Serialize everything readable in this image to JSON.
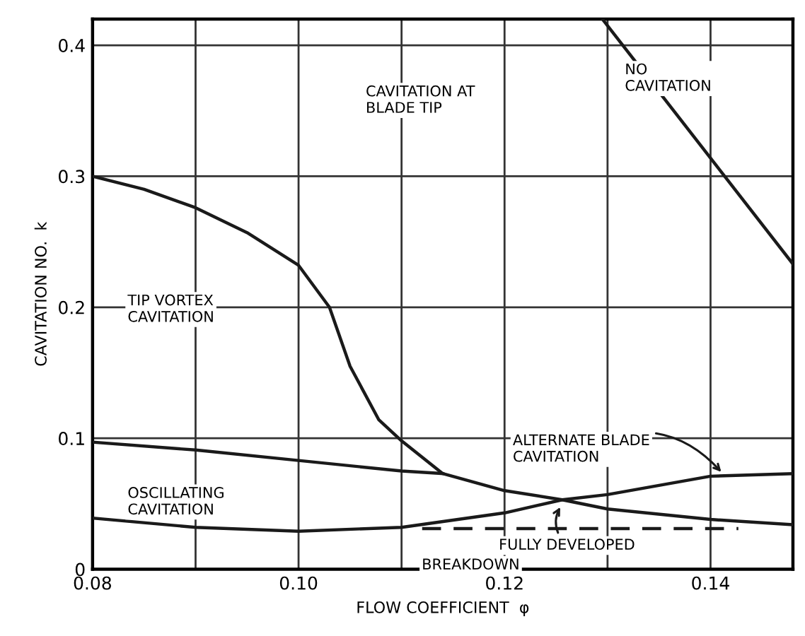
{
  "chart_data": {
    "type": "line",
    "xlabel": "FLOW COEFFICIENT  φ",
    "ylabel": "CAVITATION NO.  k",
    "xlim": [
      0.08,
      0.148
    ],
    "ylim": [
      0,
      0.42
    ],
    "xticks": [
      0.08,
      {
        "value": 0.09,
        "label": null
      },
      {
        "value": 0.1,
        "label": "0.10"
      },
      {
        "value": 0.11,
        "label": null
      },
      0.12,
      {
        "value": 0.13,
        "label": null
      },
      0.14
    ],
    "yticks": [
      0,
      0.1,
      0.2,
      0.3,
      0.4
    ],
    "grid": true,
    "series": [
      {
        "color": "#1a1a1a",
        "x": [
          0.08,
          0.085,
          0.09,
          0.095,
          0.1,
          0.103,
          0.105,
          0.1078,
          0.11,
          0.114,
          0.12,
          0.1256,
          0.13,
          0.14,
          0.148
        ],
        "values": [
          0.3,
          0.29,
          0.276,
          0.257,
          0.232,
          0.2,
          0.155,
          0.114,
          0.098,
          0.073,
          0.06,
          0.053,
          0.046,
          0.038,
          0.034
        ]
      },
      {
        "color": "#1a1a1a",
        "x": [
          0.08,
          0.09,
          0.1,
          0.11,
          0.114
        ],
        "values": [
          0.097,
          0.091,
          0.083,
          0.075,
          0.073
        ]
      },
      {
        "color": "#1a1a1a",
        "x": [
          0.08,
          0.09,
          0.1,
          0.11,
          0.12,
          0.1256,
          0.13,
          0.14,
          0.148
        ],
        "values": [
          0.039,
          0.032,
          0.029,
          0.032,
          0.043,
          0.053,
          0.057,
          0.071,
          0.073
        ]
      },
      {
        "color": "#1a1a1a",
        "line_style": "dashed",
        "x": [
          0.112,
          0.1427
        ],
        "values": [
          0.031,
          0.031
        ]
      },
      {
        "color": "#1a1a1a",
        "x": [
          0.1295,
          0.148
        ],
        "values": [
          0.42,
          0.233
        ]
      }
    ],
    "annotations": [
      "CAVITATION AT\nBLADE TIP",
      "NO\nCAVITATION",
      "TIP VORTEX\nCAVITATION",
      "OSCILLATING\nCAVITATION",
      "BREAKDOWN",
      {
        "text": "ALTERNATE BLADE\nCAVITATION",
        "x": 0.1413,
        "y": 0.072
      },
      {
        "text": "FULLY DEVELOPED",
        "x": 0.1256,
        "y": 0.05
      }
    ]
  }
}
